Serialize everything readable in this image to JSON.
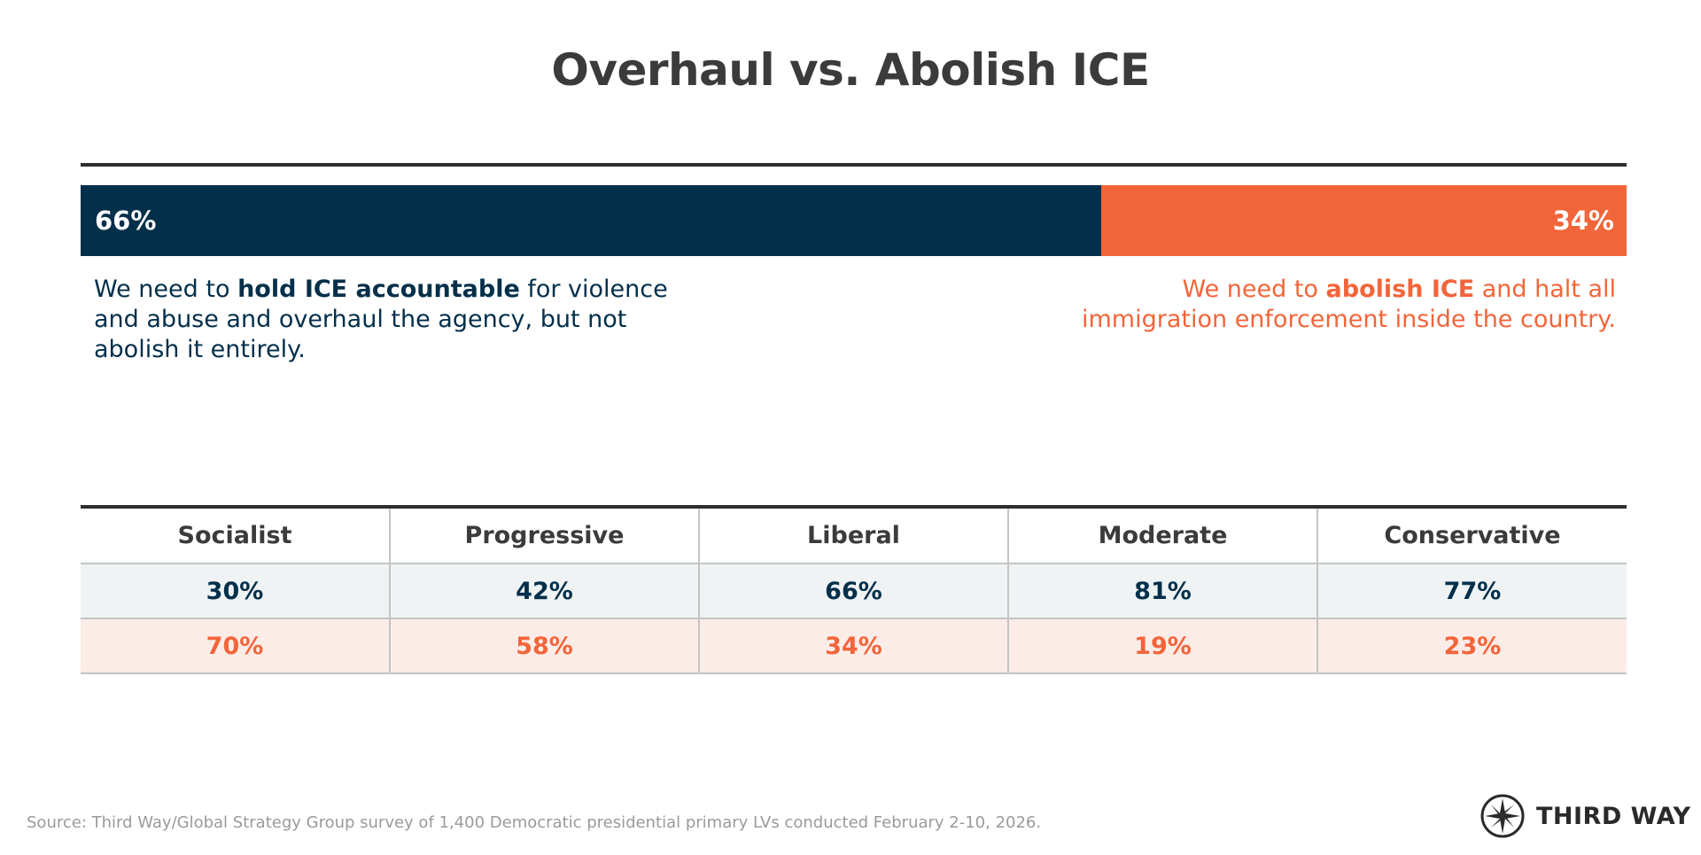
{
  "title": "Overhaul vs. Abolish ICE",
  "chart_data": [
    {
      "type": "bar",
      "stacked": true,
      "orientation": "horizontal",
      "xlim": [
        0,
        100
      ],
      "series": [
        {
          "value": 66,
          "label": "66%",
          "color": "#022f4a",
          "description": {
            "before": "We need to ",
            "bold": "hold ICE accountable",
            "after": " for violence and abuse and overhaul the agency, but not abolish it entirely."
          }
        },
        {
          "value": 34,
          "label": "34%",
          "color": "#f2653a",
          "description": {
            "before": "We need to ",
            "bold": "abolish ICE",
            "after": " and halt all immigration enforcement inside the country."
          }
        }
      ]
    },
    {
      "type": "table",
      "categories": [
        "Socialist",
        "Progressive",
        "Liberal",
        "Moderate",
        "Conservative"
      ],
      "rows": [
        {
          "color": "#022f4a",
          "background": "#eff3f4",
          "values": [
            30,
            42,
            66,
            81,
            77
          ],
          "labels": [
            "30%",
            "42%",
            "66%",
            "81%",
            "77%"
          ]
        },
        {
          "color": "#f2653a",
          "background": "#fcece7",
          "values": [
            70,
            58,
            34,
            19,
            23
          ],
          "labels": [
            "70%",
            "58%",
            "34%",
            "19%",
            "23%"
          ]
        }
      ]
    }
  ],
  "source": "Source: Third Way/Global Strategy Group survey of 1,400 Democratic presidential primary LVs conducted February 2-10, 2026.",
  "logo": {
    "text": "THIRD WAY",
    "icon": "compass-star-icon"
  }
}
